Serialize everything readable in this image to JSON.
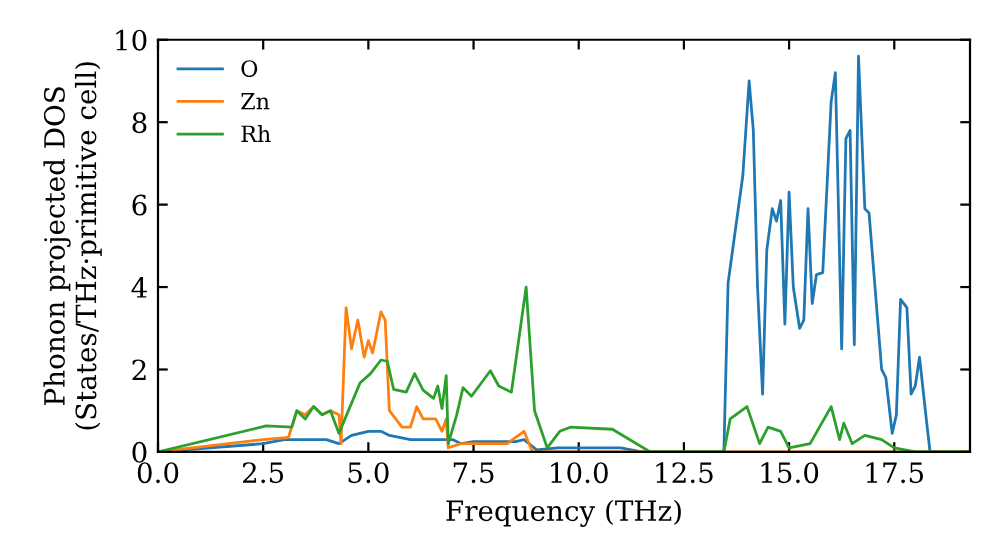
{
  "chart_data": {
    "type": "line",
    "xlabel": "Frequency (THz)",
    "ylabel": "Phonon projected DOS\n(States/THz·primitive cell)",
    "xlim": [
      0,
      19.3
    ],
    "ylim": [
      0,
      10
    ],
    "xticks": [
      {
        "value": 0,
        "label": "0.0"
      },
      2.5,
      {
        "value": 5,
        "label": "5.0"
      },
      7.5,
      {
        "value": 10,
        "label": "10.0"
      },
      12.5,
      {
        "value": 15,
        "label": "15.0"
      },
      17.5
    ],
    "yticks": [
      0,
      2,
      4,
      6,
      8,
      10
    ],
    "legend": "top left",
    "grid": false,
    "marker": "none",
    "line_style": "solid",
    "series": [
      {
        "name": "O",
        "color": "#1f77b4",
        "x": [
          0,
          2.5,
          3.0,
          3.5,
          4.0,
          4.3,
          4.6,
          5.0,
          5.3,
          5.5,
          6.0,
          6.5,
          7.0,
          7.2,
          7.5,
          8.0,
          8.5,
          8.7,
          9.0,
          9.5,
          11.0,
          11.5,
          13.45,
          13.55,
          13.9,
          14.05,
          14.15,
          14.25,
          14.37,
          14.47,
          14.6,
          14.7,
          14.8,
          14.9,
          15.0,
          15.1,
          15.25,
          15.35,
          15.45,
          15.55,
          15.65,
          15.8,
          16.0,
          16.1,
          16.25,
          16.35,
          16.45,
          16.55,
          16.65,
          16.8,
          16.9,
          17.2,
          17.3,
          17.45,
          17.55,
          17.65,
          17.8,
          17.9,
          18.0,
          18.1,
          18.25,
          18.35,
          19.3
        ],
        "values": [
          0,
          0.2,
          0.3,
          0.3,
          0.3,
          0.2,
          0.4,
          0.5,
          0.5,
          0.4,
          0.3,
          0.3,
          0.3,
          0.2,
          0.25,
          0.25,
          0.25,
          0.3,
          0.05,
          0.1,
          0.1,
          0,
          0,
          4.1,
          6.7,
          9.0,
          7.8,
          4.0,
          1.4,
          4.9,
          5.9,
          5.6,
          6.1,
          3.1,
          6.3,
          4.0,
          3.0,
          3.2,
          5.9,
          3.6,
          4.3,
          4.35,
          8.5,
          9.2,
          2.5,
          7.6,
          7.8,
          2.6,
          9.6,
          5.9,
          5.8,
          2.0,
          1.8,
          0.45,
          0.9,
          3.7,
          3.5,
          1.4,
          1.6,
          2.3,
          0.9,
          0,
          0
        ]
      },
      {
        "name": "Zn",
        "color": "#ff7f0e",
        "x": [
          0,
          2.5,
          3.1,
          3.3,
          3.5,
          3.7,
          3.9,
          4.1,
          4.3,
          4.35,
          4.47,
          4.6,
          4.75,
          4.9,
          5.0,
          5.1,
          5.3,
          5.4,
          5.5,
          5.8,
          6.0,
          6.15,
          6.3,
          6.6,
          6.75,
          6.85,
          6.9,
          7.2,
          8.3,
          8.7,
          8.9,
          13.5,
          19.3
        ],
        "values": [
          0,
          0.3,
          0.35,
          1.0,
          0.9,
          1.1,
          0.9,
          1.0,
          0.9,
          0.2,
          3.5,
          2.5,
          3.2,
          2.3,
          2.7,
          2.4,
          3.4,
          3.2,
          1.0,
          0.6,
          0.6,
          1.1,
          0.8,
          0.8,
          0.5,
          0.8,
          0.1,
          0.2,
          0.2,
          0.5,
          0,
          0,
          0
        ]
      },
      {
        "name": "Rh",
        "color": "#2ca02c",
        "x": [
          0,
          2.57,
          3.18,
          3.3,
          3.5,
          3.7,
          3.9,
          4.1,
          4.3,
          4.8,
          5.05,
          5.3,
          5.45,
          5.6,
          5.9,
          6.1,
          6.3,
          6.55,
          6.65,
          6.75,
          6.85,
          6.9,
          7.1,
          7.25,
          7.45,
          7.9,
          8.1,
          8.4,
          8.75,
          8.95,
          9.25,
          9.55,
          9.8,
          10.8,
          11.7,
          13.45,
          13.6,
          14.0,
          14.3,
          14.5,
          14.8,
          15.0,
          15.5,
          16.0,
          16.2,
          16.3,
          16.5,
          16.8,
          17.2,
          17.5,
          18.0,
          19.3
        ],
        "values": [
          0,
          0.63,
          0.6,
          1.0,
          0.8,
          1.1,
          0.9,
          1.0,
          0.45,
          1.67,
          1.9,
          2.23,
          2.2,
          1.52,
          1.45,
          1.9,
          1.5,
          1.3,
          1.6,
          1.05,
          1.85,
          0.2,
          0.9,
          1.56,
          1.35,
          1.97,
          1.6,
          1.45,
          4.0,
          1.0,
          0.1,
          0.5,
          0.6,
          0.55,
          0,
          0,
          0.8,
          1.1,
          0.2,
          0.6,
          0.5,
          0.1,
          0.2,
          1.1,
          0.3,
          0.7,
          0.2,
          0.4,
          0.3,
          0.1,
          0,
          0
        ]
      }
    ]
  }
}
